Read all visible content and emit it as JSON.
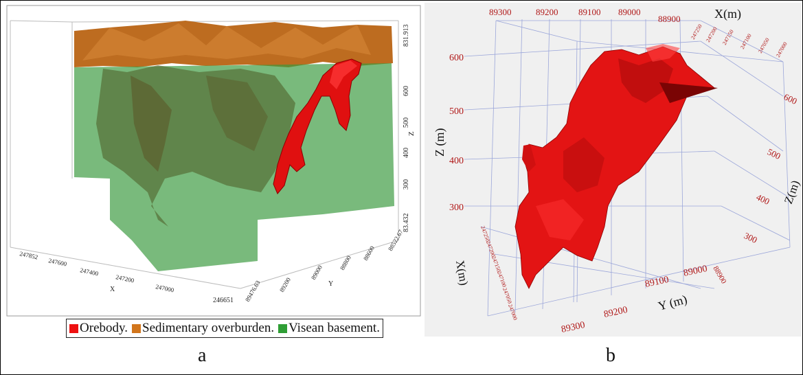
{
  "panel_a": {
    "label": "a",
    "z_axis": {
      "label": "Z",
      "ticks": [
        "831.913",
        "600",
        "500",
        "400",
        "300",
        "83.432"
      ]
    },
    "x_axis": {
      "label": "X",
      "ticks": [
        "247852",
        "247600",
        "247400",
        "247200",
        "247000",
        "246651"
      ]
    },
    "y_axis": {
      "label": "Y",
      "ticks": [
        "89476.63",
        "89200",
        "89000",
        "88800",
        "88600",
        "88522.67"
      ]
    },
    "legend": [
      {
        "label": "Orebody.",
        "color": "#ee1111"
      },
      {
        "label": "Sedimentary overburden.",
        "color": "#d2761c"
      },
      {
        "label": "Visean basement.",
        "color": "#2f9e35"
      }
    ]
  },
  "panel_b": {
    "label": "b",
    "top_axis": {
      "label": "X(m)",
      "ticks": [
        "89300",
        "89200",
        "89100",
        "89000",
        "88900"
      ],
      "small_ticks": [
        "247250",
        "247200",
        "247150",
        "247100",
        "247050",
        "247000"
      ]
    },
    "z_left": {
      "label": "Z (m)",
      "ticks": [
        "600",
        "500",
        "400",
        "300"
      ]
    },
    "z_right": {
      "label": "Z(m)",
      "ticks": [
        "600",
        "500",
        "400",
        "300"
      ]
    },
    "x_left": {
      "label": "X(m)",
      "ticks": [
        "247250",
        "247200",
        "247150",
        "247100",
        "247050",
        "247000"
      ]
    },
    "y_bottom": {
      "label": "Y (m)",
      "ticks": [
        "89300",
        "89200",
        "89100",
        "89000",
        "88900"
      ]
    }
  },
  "colors": {
    "orebody": "#ee1111",
    "overburden": "#c8701a",
    "basement": "#46a84e",
    "axis_red": "#b01818",
    "grid_blue": "#8d9ad6"
  }
}
